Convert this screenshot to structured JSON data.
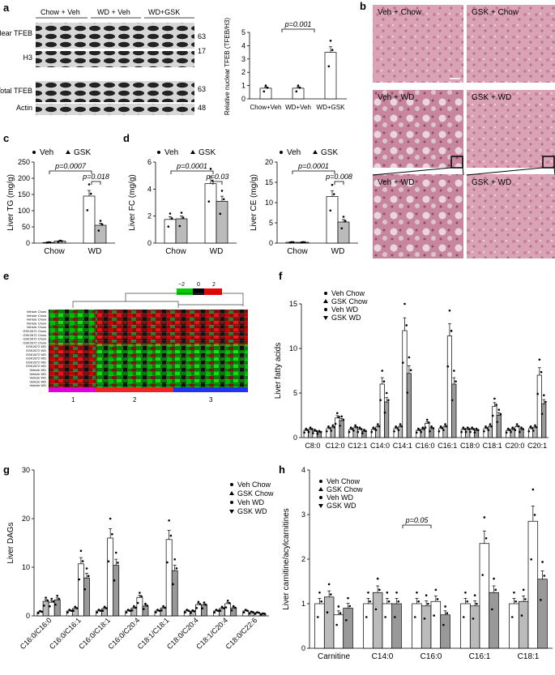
{
  "panels": {
    "a": {
      "label": "a",
      "groups": [
        "Chow + Veh",
        "WD + Veh",
        "WD+GSK"
      ],
      "blots": [
        {
          "name": "Nuclear TFEB",
          "mw": "63"
        },
        {
          "name": "H3",
          "mw": "17"
        },
        {
          "name": "Total TFEB",
          "mw": "63"
        },
        {
          "name": "Actin",
          "mw": "48"
        }
      ],
      "chart": {
        "ylabel": "Relative nuclear TFEB (TFEB/H3)",
        "categories": [
          "Chow+Veh",
          "WD+Veh",
          "WD+GSK"
        ],
        "values": [
          0.8,
          0.8,
          3.5
        ],
        "ylim": [
          0,
          5
        ],
        "yticks": [
          "0",
          "1",
          "2",
          "3",
          "4",
          "5"
        ],
        "pvalue": "p=0.001"
      }
    },
    "b": {
      "label": "b",
      "captions": [
        "Veh + Chow",
        "GSK + Chow",
        "Veh + WD",
        "GSK + WD",
        "Veh + WD",
        "GSK + WD"
      ]
    },
    "c": {
      "label": "c",
      "legend": [
        "Veh",
        "GSK"
      ],
      "ylabel": "Liver TG (mg/g)",
      "categories": [
        "Chow",
        "WD"
      ],
      "values": {
        "Veh": [
          2,
          145
        ],
        "GSK": [
          6,
          55
        ]
      },
      "ylim": [
        0,
        250
      ],
      "yticks": [
        "0",
        "50",
        "100",
        "150",
        "200",
        "250"
      ],
      "pvalues": [
        "p=0.0007",
        "p=0.018"
      ]
    },
    "d": {
      "label": "d",
      "fc": {
        "legend": [
          "Veh",
          "GSK"
        ],
        "ylabel": "Liver FC (mg/g)",
        "categories": [
          "Chow",
          "WD"
        ],
        "values": {
          "Veh": [
            1.75,
            4.4
          ],
          "GSK": [
            1.8,
            3.1
          ]
        },
        "ylim": [
          0,
          6
        ],
        "yticks": [
          "0",
          "2",
          "4",
          "6"
        ],
        "pvalues": [
          "p=0.0001",
          "p=0.03"
        ]
      },
      "ce": {
        "legend": [
          "Veh",
          "GSK"
        ],
        "ylabel": "Liver CE (mg/g)",
        "categories": [
          "Chow",
          "WD"
        ],
        "values": {
          "Veh": [
            0.2,
            11.5
          ],
          "GSK": [
            0.2,
            5.2
          ]
        },
        "ylim": [
          0,
          20
        ],
        "yticks": [
          "0",
          "5",
          "10",
          "15",
          "20"
        ],
        "pvalues": [
          "p=0.0001",
          "p=0.008"
        ]
      }
    },
    "e": {
      "label": "e",
      "scale": [
        "−2",
        "0",
        "2"
      ],
      "rows": [
        "Vehicle Chow",
        "Vehicle Chow",
        "Vehicle Chow",
        "Vehicle Chow",
        "Vehicle Chow",
        "GSK2672 Chow",
        "GSK2672 Chow",
        "GSK2672 Chow",
        "GSK2672 Chow",
        "GSK2672 WD",
        "GSK2672 WD",
        "GSK2672 WD",
        "GSK2672 WD",
        "GSK2672 WD",
        "GSK2672 WD",
        "Vehicle WD",
        "Vehicle WD",
        "Vehicle WD",
        "Vehicle WD",
        "Vehicle WD"
      ],
      "clusters": [
        "1",
        "2",
        "3"
      ],
      "colors": {
        "low": "#00cc00",
        "mid": "#000000",
        "high": "#ee0000",
        "c1": "#dd00dd",
        "c2": "#ee2222",
        "c3": "#2233ee"
      }
    },
    "f": {
      "label": "f",
      "legend": [
        "Veh Chow",
        "GSK Chow",
        "Veh WD",
        "GSK WD"
      ],
      "ylabel": "Liver fatty acids",
      "categories": [
        "C8:0",
        "C12:0",
        "C12:1",
        "C14:0",
        "C14:1",
        "C16:0",
        "C16:1",
        "C18:0",
        "C18:1",
        "C20:0",
        "C20:1"
      ],
      "series": [
        {
          "name": "Veh Chow",
          "values": [
            0.8,
            1.0,
            0.9,
            0.9,
            1.0,
            0.8,
            1.0,
            0.9,
            1.0,
            0.8,
            1.0
          ]
        },
        {
          "name": "GSK Chow",
          "values": [
            0.9,
            1.1,
            1.1,
            1.2,
            1.2,
            0.9,
            1.2,
            0.9,
            1.2,
            0.9,
            1.1
          ]
        },
        {
          "name": "Veh WD",
          "values": [
            0.7,
            2.2,
            0.9,
            6.0,
            12.0,
            1.6,
            11.4,
            0.9,
            3.5,
            1.2,
            7.0
          ]
        },
        {
          "name": "GSK WD",
          "values": [
            0.6,
            1.9,
            0.7,
            4.0,
            7.2,
            1.0,
            6.0,
            0.8,
            2.5,
            0.9,
            3.8
          ]
        }
      ],
      "ylim": [
        0,
        15
      ],
      "yticks": [
        "0",
        "5",
        "10",
        "15"
      ],
      "marks": [
        "*",
        "***",
        "***",
        "***",
        "***",
        "***",
        "***",
        "***",
        "#",
        "##",
        "###",
        "##"
      ]
    },
    "g": {
      "label": "g",
      "legend": [
        "Veh Chow",
        "GSK Chow",
        "Veh WD",
        "GSK WD"
      ],
      "ylabel": "Liver DAGs",
      "categories": [
        "C16:0/C16:0",
        "C16:0/C16:1",
        "C16:0/C18:1",
        "C16:0/C20:4",
        "C18:1/C18:1",
        "C18:0/C20:4",
        "C18:1/C20:4",
        "C18:0/C22:6"
      ],
      "series": [
        {
          "name": "Veh Chow",
          "values": [
            0.8,
            1.0,
            1.0,
            1.0,
            1.0,
            1.0,
            1.0,
            1.0
          ]
        },
        {
          "name": "GSK Chow",
          "values": [
            3.0,
            1.5,
            1.5,
            1.6,
            1.6,
            0.9,
            1.5,
            0.7
          ]
        },
        {
          "name": "Veh WD",
          "values": [
            2.8,
            10.7,
            16.0,
            3.8,
            15.7,
            2.3,
            2.5,
            0.6
          ]
        },
        {
          "name": "GSK WD",
          "values": [
            3.3,
            7.8,
            10.4,
            2.0,
            9.3,
            2.2,
            1.6,
            0.4
          ]
        }
      ],
      "ylim": [
        0,
        30
      ],
      "yticks": [
        "0",
        "10",
        "20",
        "30"
      ]
    },
    "h": {
      "label": "h",
      "legend": [
        "Veh Chow",
        "GSK Chow",
        "Veh WD",
        "GSK WD"
      ],
      "ylabel": "Liver carnitine/acylcarnitines",
      "categories": [
        "Carnitine",
        "C14:0",
        "C16:0",
        "C16:1",
        "C18:1"
      ],
      "series": [
        {
          "name": "Veh Chow",
          "values": [
            1.0,
            1.0,
            1.0,
            1.0,
            1.0
          ]
        },
        {
          "name": "GSK Chow",
          "values": [
            1.15,
            1.25,
            0.95,
            0.95,
            1.05
          ]
        },
        {
          "name": "Veh WD",
          "values": [
            0.75,
            1.0,
            1.05,
            2.35,
            2.85
          ]
        },
        {
          "name": "GSK WD",
          "values": [
            0.9,
            1.0,
            0.75,
            1.25,
            1.55
          ]
        }
      ],
      "ylim": [
        0,
        4
      ],
      "yticks": [
        "0",
        "1",
        "2",
        "3",
        "4"
      ],
      "pvalue": "p=0.05"
    }
  }
}
